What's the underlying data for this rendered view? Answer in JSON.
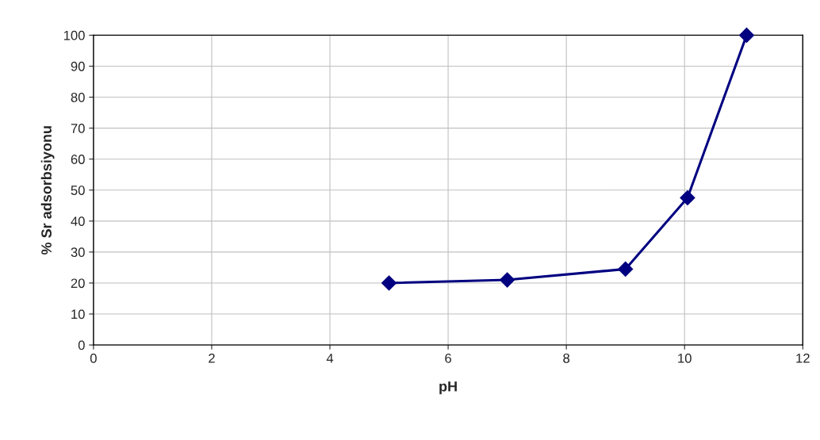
{
  "chart_data": {
    "type": "line",
    "xlabel": "pH",
    "ylabel": "% Sr adsorbsiyonu",
    "x": [
      5,
      7,
      9,
      10.05,
      11.05
    ],
    "series": [
      {
        "color": "#000080",
        "values": [
          20,
          21,
          24.5,
          47.5,
          100
        ]
      }
    ],
    "xlim": [
      0,
      12
    ],
    "xticks": [
      0,
      2,
      4,
      6,
      8,
      10,
      12
    ],
    "ylim": [
      0,
      100
    ],
    "yticks": [
      0,
      10,
      20,
      30,
      40,
      50,
      60,
      70,
      80,
      90,
      100
    ],
    "grid": true,
    "marker": "diamond",
    "line_style": "solid"
  }
}
